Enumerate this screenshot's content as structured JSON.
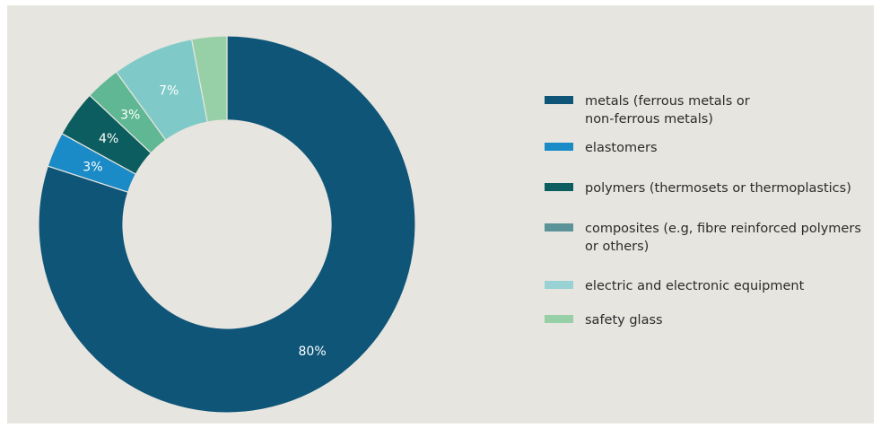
{
  "chart_data": {
    "type": "pie",
    "variant": "donut",
    "slices": [
      {
        "label": "metals (ferrous metals or non-ferrous metals)",
        "value": 80,
        "value_label": "80%",
        "color": "#0e5578"
      },
      {
        "label": "elastomers",
        "value": 3,
        "value_label": "3%",
        "color": "#1a8bc7"
      },
      {
        "label": "polymers (thermosets or thermoplastics)",
        "value": 4,
        "value_label": "4%",
        "color": "#0c5d5f"
      },
      {
        "label": "composites (e.g, fibre reinforced polymers or others)",
        "value": 3,
        "value_label": "3%",
        "color": "#5fb893"
      },
      {
        "label": "electric and electronic equipment",
        "value": 7,
        "value_label": "7%",
        "color": "#7fcac8"
      },
      {
        "label": "safety glass",
        "value": 3,
        "value_label": "",
        "color": "#97d0a6"
      }
    ],
    "legend": {
      "placement": "right",
      "items": [
        {
          "lines": [
            "metals (ferrous metals or",
            "non-ferrous metals)"
          ],
          "color": "#0e5578"
        },
        {
          "lines": [
            "elastomers"
          ],
          "color": "#1a8bc7"
        },
        {
          "lines": [
            "polymers (thermosets or thermoplastics)"
          ],
          "color": "#0c5d5f"
        },
        {
          "lines": [
            "composites (e.g, fibre reinforced polymers",
            "or others)"
          ],
          "color": "#5b9398"
        },
        {
          "lines": [
            "electric and electronic equipment"
          ],
          "color": "#99d2d4"
        },
        {
          "lines": [
            "safety glass"
          ],
          "color": "#97d0a6"
        }
      ]
    }
  }
}
